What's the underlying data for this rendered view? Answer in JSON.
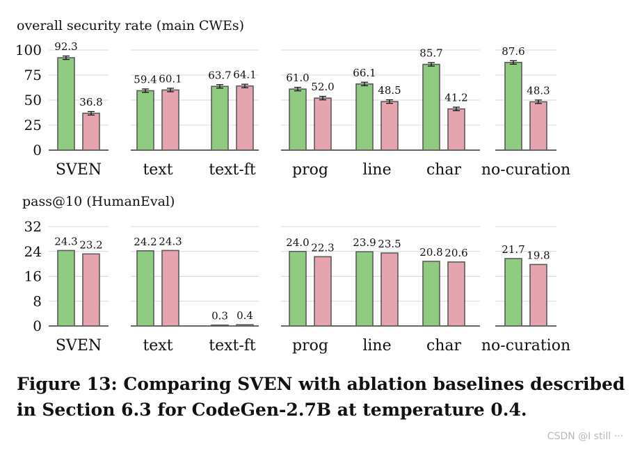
{
  "chart_data": [
    {
      "type": "bar",
      "title": "overall security rate (main CWEs)",
      "ylim": [
        0,
        100
      ],
      "yticks": [
        0,
        25,
        50,
        75,
        100
      ],
      "grid": true,
      "error_bars": true,
      "groups": [
        {
          "name": "SVEN",
          "values": [
            92.3,
            36.8
          ],
          "labels": [
            "92.3",
            "36.8"
          ]
        },
        {
          "name": "text",
          "values": [
            59.4,
            60.1
          ],
          "labels": [
            "59.4",
            "60.1"
          ]
        },
        {
          "name": "text-ft",
          "values": [
            63.7,
            64.1
          ],
          "labels": [
            "63.7",
            "64.1"
          ]
        },
        {
          "name": "prog",
          "values": [
            61.0,
            52.0
          ],
          "labels": [
            "61.0",
            "52.0"
          ]
        },
        {
          "name": "line",
          "values": [
            66.1,
            48.5
          ],
          "labels": [
            "66.1",
            "48.5"
          ]
        },
        {
          "name": "char",
          "values": [
            85.7,
            41.2
          ],
          "labels": [
            "85.7",
            "41.2"
          ]
        },
        {
          "name": "no-curation",
          "values": [
            87.6,
            48.3
          ],
          "labels": [
            "87.6",
            "48.3"
          ]
        }
      ]
    },
    {
      "type": "bar",
      "title": "pass@10 (HumanEval)",
      "ylim": [
        0,
        32
      ],
      "yticks": [
        0,
        8,
        16,
        24,
        32
      ],
      "grid": true,
      "error_bars": false,
      "groups": [
        {
          "name": "SVEN",
          "values": [
            24.3,
            23.2
          ],
          "labels": [
            "24.3",
            "23.2"
          ]
        },
        {
          "name": "text",
          "values": [
            24.2,
            24.3
          ],
          "labels": [
            "24.2",
            "24.3"
          ]
        },
        {
          "name": "text-ft",
          "values": [
            0.3,
            0.4
          ],
          "labels": [
            "0.3",
            "0.4"
          ]
        },
        {
          "name": "prog",
          "values": [
            24.0,
            22.3
          ],
          "labels": [
            "24.0",
            "22.3"
          ]
        },
        {
          "name": "line",
          "values": [
            23.9,
            23.5
          ],
          "labels": [
            "23.9",
            "23.5"
          ]
        },
        {
          "name": "char",
          "values": [
            20.8,
            20.6
          ],
          "labels": [
            "20.8",
            "20.6"
          ]
        },
        {
          "name": "no-curation",
          "values": [
            21.7,
            19.8
          ],
          "labels": [
            "21.7",
            "19.8"
          ]
        }
      ]
    }
  ],
  "colors": {
    "green": "#8fcb80",
    "pink": "#e6a5ae",
    "edge": "#5a5a5a",
    "grid": "#d8d8d8",
    "axis": "#333333"
  },
  "caption": {
    "line1": "Figure 13: Comparing SVEN with ablation baselines described",
    "line2": "in Section 6.3 for CodeGen-2.7B at temperature 0.4."
  },
  "watermark": "CSDN @I still ···"
}
